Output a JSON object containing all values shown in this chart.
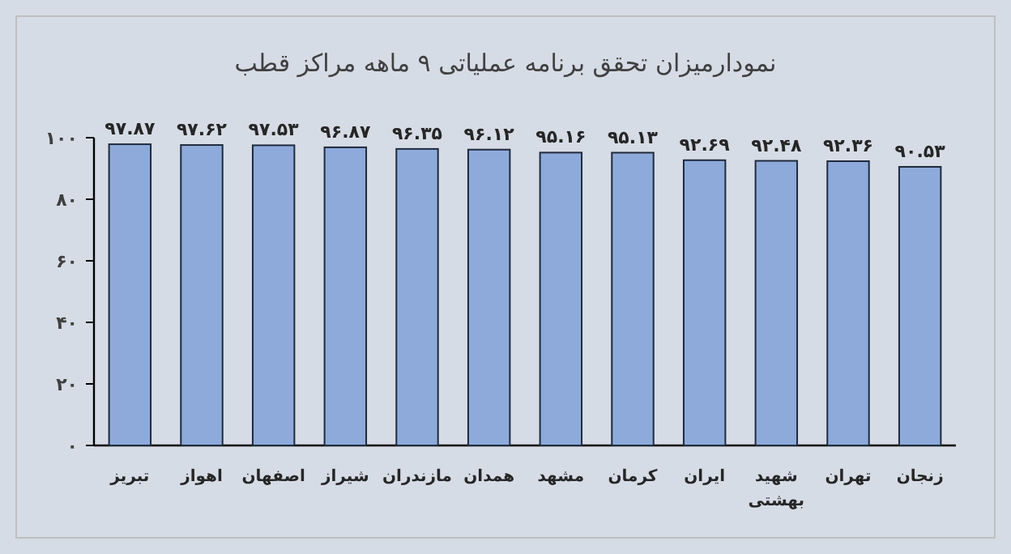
{
  "chart_data": {
    "type": "bar",
    "title": "نمودارمیزان تحقق برنامه عملیاتی ۹ ماهه مراکز قطب",
    "categories": [
      "تبریز",
      "اهواز",
      "اصفهان",
      "شیراز",
      "مازندران",
      "همدان",
      "مشهد",
      "کرمان",
      "ایران",
      "شهید بهشتی",
      "تهران",
      "زنجان"
    ],
    "values": [
      97.87,
      97.62,
      97.53,
      96.87,
      96.35,
      96.12,
      95.16,
      95.13,
      92.69,
      92.48,
      92.36,
      90.53
    ],
    "value_labels": [
      "۹۷.۸۷",
      "۹۷.۶۲",
      "۹۷.۵۳",
      "۹۶.۸۷",
      "۹۶.۳۵",
      "۹۶.۱۲",
      "۹۵.۱۶",
      "۹۵.۱۳",
      "۹۲.۶۹",
      "۹۲.۴۸",
      "۹۲.۳۶",
      "۹۰.۵۳"
    ],
    "color": "#8eaadb",
    "ylim": [
      0,
      100
    ],
    "yticks": [
      {
        "value": 0,
        "label": "۰"
      },
      {
        "value": 20,
        "label": "۲۰"
      },
      {
        "value": 40,
        "label": "۴۰"
      },
      {
        "value": 60,
        "label": "۶۰"
      },
      {
        "value": 80,
        "label": "۸۰"
      },
      {
        "value": 100,
        "label": "۱۰۰"
      }
    ]
  }
}
